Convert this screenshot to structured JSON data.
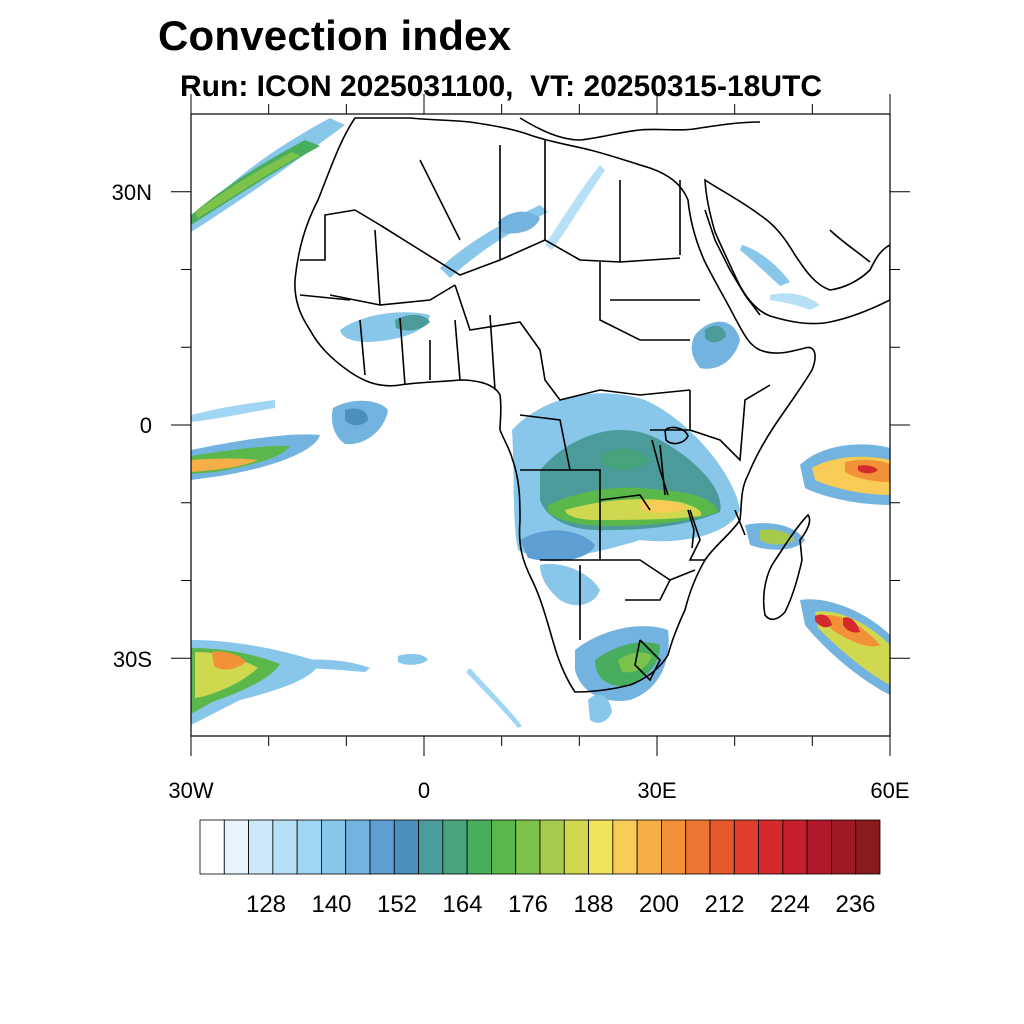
{
  "title": "Convection index",
  "subtitle": "Run: ICON 2025031100,  VT: 20250315-18UTC",
  "axes": {
    "x_ticks": [
      {
        "value": -30,
        "label": "30W"
      },
      {
        "value": 0,
        "label": "0"
      },
      {
        "value": 30,
        "label": "30E"
      },
      {
        "value": 60,
        "label": "60E"
      }
    ],
    "y_ticks": [
      {
        "value": 30,
        "label": "30N"
      },
      {
        "value": 0,
        "label": "0"
      },
      {
        "value": -30,
        "label": "30S"
      }
    ],
    "lon_range": [
      -30,
      60
    ],
    "lat_range": [
      -40,
      40
    ]
  },
  "colorbar": {
    "colors": [
      "#ffffff",
      "#e8f4fb",
      "#cde9f7",
      "#b6e0f5",
      "#a0d6f3",
      "#88c6ea",
      "#73b3e0",
      "#5d9fd3",
      "#4a8fbe",
      "#4a9b9a",
      "#47a37a",
      "#48ad5c",
      "#5ab84a",
      "#7dc24a",
      "#a6cb4c",
      "#cfd84f",
      "#f1e35a",
      "#f7cb55",
      "#f6ae47",
      "#f39139",
      "#ee7431",
      "#e7582c",
      "#df3f2a",
      "#d52a2b",
      "#c51f2b",
      "#b2182b",
      "#9d1a24",
      "#8a1a1c"
    ],
    "labels": [
      "128",
      "140",
      "152",
      "164",
      "176",
      "188",
      "200",
      "212",
      "224",
      "236"
    ]
  },
  "chart_data": {
    "type": "heatmap",
    "title": "Convection index",
    "subtitle": "Run: ICON 2025031100,  VT: 20250315-18UTC",
    "xlabel": "",
    "ylabel": "",
    "lon_range": [
      -30,
      60
    ],
    "lat_range": [
      -40,
      40
    ],
    "colorbar_ticks": [
      128,
      140,
      152,
      164,
      176,
      188,
      200,
      212,
      224,
      236
    ],
    "regions": [
      {
        "lon": 25,
        "lat": -7,
        "value": 170
      },
      {
        "lon": 27,
        "lat": -11,
        "value": 195
      },
      {
        "lon": 33,
        "lat": -11,
        "value": 190
      },
      {
        "lon": 55,
        "lat": -5,
        "value": 220
      },
      {
        "lon": 56,
        "lat": -28,
        "value": 230
      },
      {
        "lon": -25,
        "lat": -32,
        "value": 215
      },
      {
        "lon": -25,
        "lat": -5,
        "value": 190
      },
      {
        "lon": -25,
        "lat": 30,
        "value": 170
      },
      {
        "lon": 28,
        "lat": -29,
        "value": 170
      },
      {
        "lon": 11,
        "lat": 25,
        "value": 145
      },
      {
        "lon": 36,
        "lat": 10,
        "value": 150
      },
      {
        "lon": -7,
        "lat": 0,
        "value": 145
      }
    ]
  }
}
